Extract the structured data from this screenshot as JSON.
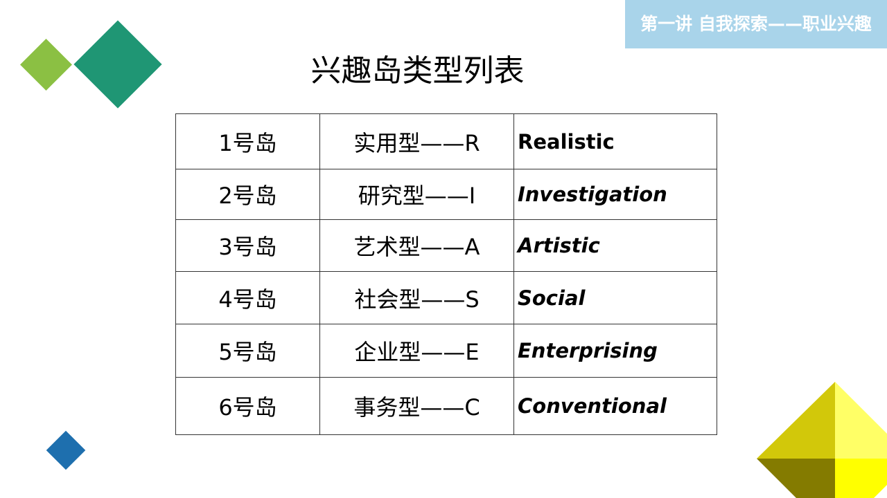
{
  "banner": "第一讲 自我探索——职业兴趣",
  "title": "兴趣岛类型列表",
  "colors": {
    "banner": "#a9d4ea",
    "green_light": "#8bc043",
    "green_dark": "#1f9674",
    "blue": "#1e6fae",
    "yellow": [
      "#d2c80a",
      "#ffff66",
      "#847b00",
      "#ffff00"
    ]
  },
  "rows": [
    {
      "island": "1号岛",
      "type": "实用型——R",
      "english": "Realistic"
    },
    {
      "island": "2号岛",
      "type": "研究型——I",
      "english": "Investigation"
    },
    {
      "island": "3号岛",
      "type": "艺术型——A",
      "english": "Artistic"
    },
    {
      "island": "4号岛",
      "type": "社会型——S",
      "english": "Social"
    },
    {
      "island": "5号岛",
      "type": "企业型——E",
      "english": "Enterprising"
    },
    {
      "island": "6号岛",
      "type": "事务型——C",
      "english": "Conventional"
    }
  ]
}
